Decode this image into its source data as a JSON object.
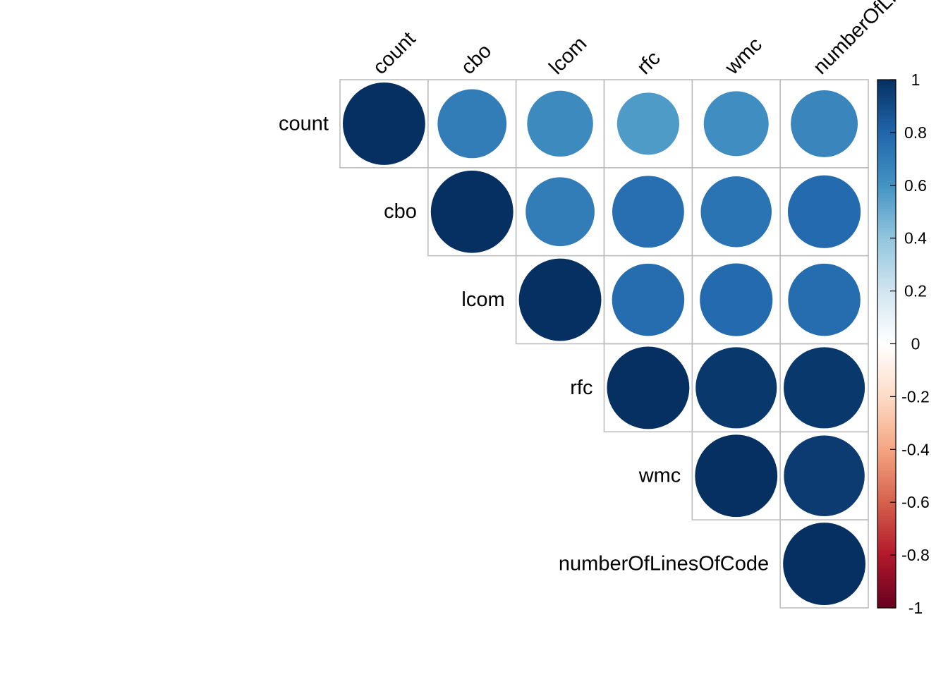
{
  "chart_data": {
    "type": "heatmap",
    "variables": [
      "count",
      "cbo",
      "lcom",
      "rfc",
      "wmc",
      "numberOfLinesOfCode"
    ],
    "cells": [
      {
        "row": "count",
        "col": "count",
        "value": 1.0
      },
      {
        "row": "count",
        "col": "cbo",
        "value": 0.7
      },
      {
        "row": "count",
        "col": "lcom",
        "value": 0.64
      },
      {
        "row": "count",
        "col": "rfc",
        "value": 0.57
      },
      {
        "row": "count",
        "col": "wmc",
        "value": 0.62
      },
      {
        "row": "count",
        "col": "numberOfLinesOfCode",
        "value": 0.66
      },
      {
        "row": "cbo",
        "col": "cbo",
        "value": 1.0
      },
      {
        "row": "cbo",
        "col": "lcom",
        "value": 0.7
      },
      {
        "row": "cbo",
        "col": "rfc",
        "value": 0.76
      },
      {
        "row": "cbo",
        "col": "wmc",
        "value": 0.74
      },
      {
        "row": "cbo",
        "col": "numberOfLinesOfCode",
        "value": 0.78
      },
      {
        "row": "lcom",
        "col": "lcom",
        "value": 1.0
      },
      {
        "row": "lcom",
        "col": "rfc",
        "value": 0.77
      },
      {
        "row": "lcom",
        "col": "wmc",
        "value": 0.78
      },
      {
        "row": "lcom",
        "col": "numberOfLinesOfCode",
        "value": 0.77
      },
      {
        "row": "rfc",
        "col": "rfc",
        "value": 1.0
      },
      {
        "row": "rfc",
        "col": "wmc",
        "value": 0.97
      },
      {
        "row": "rfc",
        "col": "numberOfLinesOfCode",
        "value": 0.97
      },
      {
        "row": "wmc",
        "col": "wmc",
        "value": 1.0
      },
      {
        "row": "wmc",
        "col": "numberOfLinesOfCode",
        "value": 0.96
      },
      {
        "row": "numberOfLinesOfCode",
        "col": "numberOfLinesOfCode",
        "value": 1.0
      }
    ],
    "colorbar": {
      "range": [
        -1,
        1
      ],
      "tick_labels": [
        "1",
        "0.8",
        "0.6",
        "0.4",
        "0.2",
        "0",
        "-0.2",
        "-0.4",
        "-0.6",
        "-0.8",
        "-1"
      ],
      "palette": [
        "#67001F",
        "#B2182B",
        "#D6604D",
        "#F4A582",
        "#FDDBC7",
        "#FFFFFF",
        "#D1E5F0",
        "#92C5DE",
        "#4393C3",
        "#2166AC",
        "#053061"
      ]
    },
    "grid": true,
    "shape": "circle",
    "layout": "upper-triangle"
  }
}
